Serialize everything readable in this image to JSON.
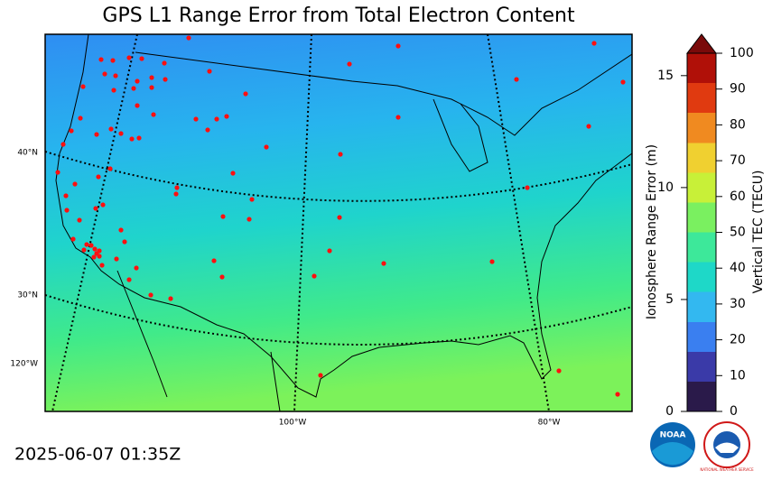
{
  "title": "GPS L1 Range Error from Total Electron Content",
  "timestamp": "2025-06-07 01:35Z",
  "map": {
    "lat_labels": [
      "40°N",
      "30°N"
    ],
    "lon_labels": [
      "120°W",
      "100°W",
      "80°W"
    ]
  },
  "colorbar": {
    "tec_label": "Vertical TEC (TECU)",
    "tec_lim": [
      0,
      100
    ],
    "tec_ticks": [
      0,
      10,
      20,
      30,
      40,
      50,
      60,
      70,
      80,
      90,
      100
    ],
    "error_label": "Ionosphere Range Error (m)",
    "error_lim": [
      0,
      16
    ],
    "error_ticks": [
      0,
      5,
      10,
      15
    ],
    "colors": [
      "#2a1a4a",
      "#3a3aa8",
      "#3a7ff0",
      "#33b8f0",
      "#1ed8c8",
      "#3de89a",
      "#7af060",
      "#c8f038",
      "#f0d030",
      "#f08a20",
      "#e03a10",
      "#b01008",
      "#7a0a0a"
    ]
  },
  "logos": {
    "noaa": "NOAA",
    "nws": "NATIONAL WEATHER SERVICE"
  }
}
